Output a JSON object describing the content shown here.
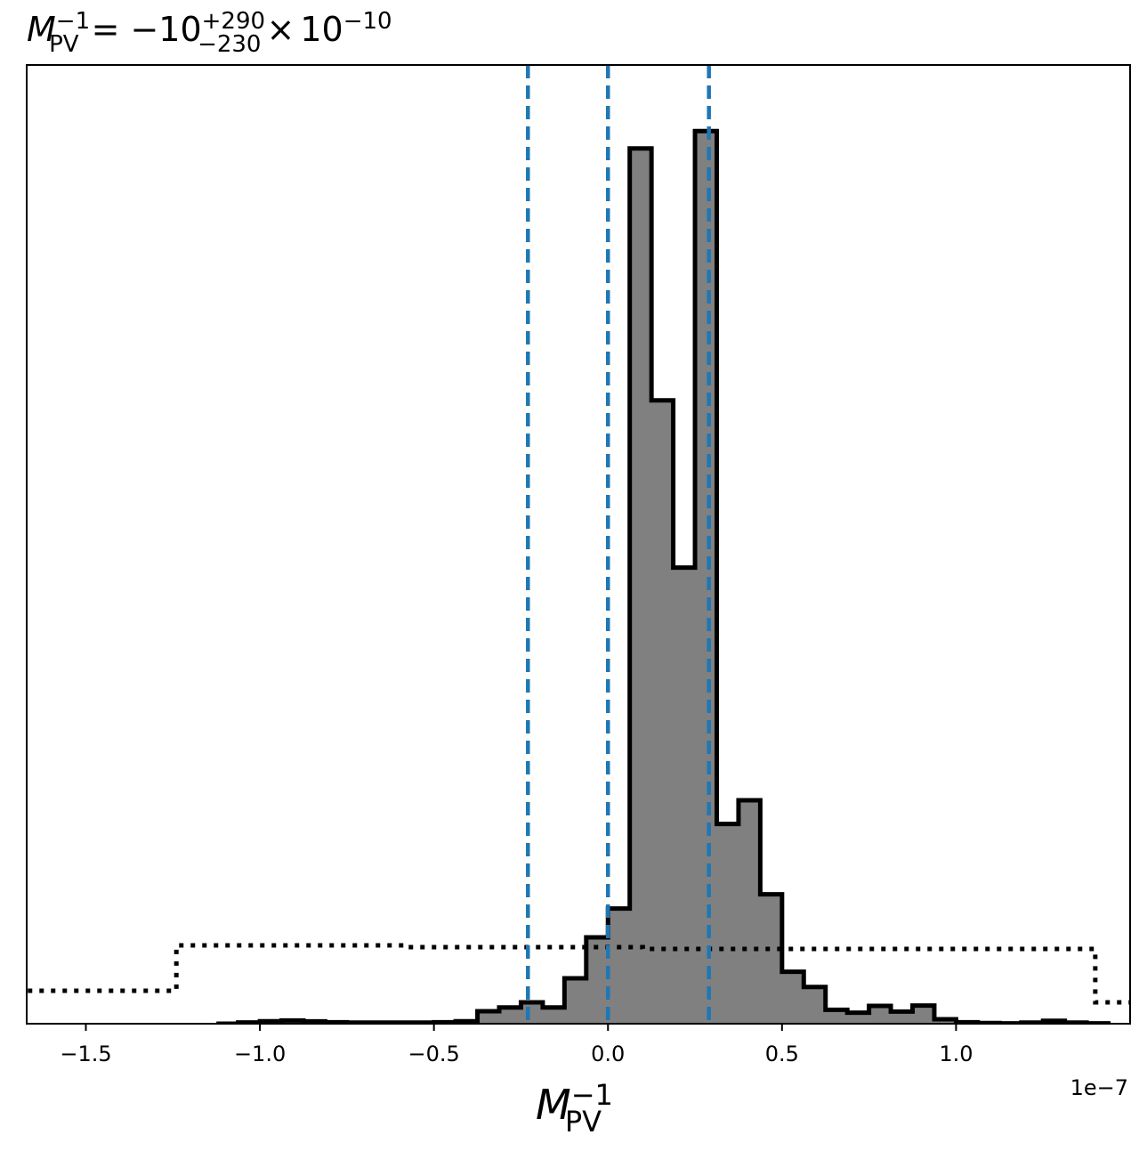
{
  "chart_data": {
    "type": "histogram",
    "title": {
      "symbol": "M",
      "subscript": "PV",
      "superscript": "−1",
      "equals": "=",
      "value": "−10",
      "err_plus": "+290",
      "err_minus": "−230",
      "times": "×",
      "exp_base": "10",
      "exp_power": "−10"
    },
    "xlabel": {
      "symbol": "M",
      "subscript": "PV",
      "superscript": "−1"
    },
    "x_offset_label": "1e−7",
    "xlim": [
      -1.67,
      1.5
    ],
    "x_ticks": [
      -1.5,
      -1.0,
      -0.5,
      0.0,
      0.5,
      1.0
    ],
    "x_tick_labels": [
      "−1.5",
      "−1.0",
      "−0.5",
      "0.0",
      "0.5",
      "1.0"
    ],
    "posterior": {
      "bin_width": 0.0625,
      "edges_start": -1.125,
      "counts": [
        0,
        1.4,
        2.8,
        3.6,
        2.6,
        1.6,
        1.2,
        1.2,
        1.2,
        1.2,
        1.6,
        2.8,
        14.0,
        18.2,
        24.0,
        18.2,
        51.0,
        97.0,
        129.4,
        983.2,
        700.2,
        512.4,
        1002.8,
        224.4,
        251.0,
        145.4,
        58.4,
        41.2,
        15.6,
        12.4,
        20.0,
        13.6,
        20.4,
        5.0,
        1.6,
        0.8,
        0.4,
        1.2,
        3.2,
        1.2,
        0.4
      ],
      "y_max": 1052,
      "fill_color": "#808080",
      "edge_color": "#000000"
    },
    "prior": {
      "edges": [
        -1.7,
        -1.24,
        -0.58,
        0.1,
        1.4,
        1.52
      ],
      "values": [
        37,
        88,
        86,
        84,
        24
      ],
      "color": "#000000",
      "style": "dotted"
    },
    "credible_lines": {
      "x": [
        -0.23,
        0.0,
        0.29
      ],
      "color": "#1f77b4",
      "style": "dashed"
    },
    "grid": false,
    "y_axis_labels": "none"
  }
}
